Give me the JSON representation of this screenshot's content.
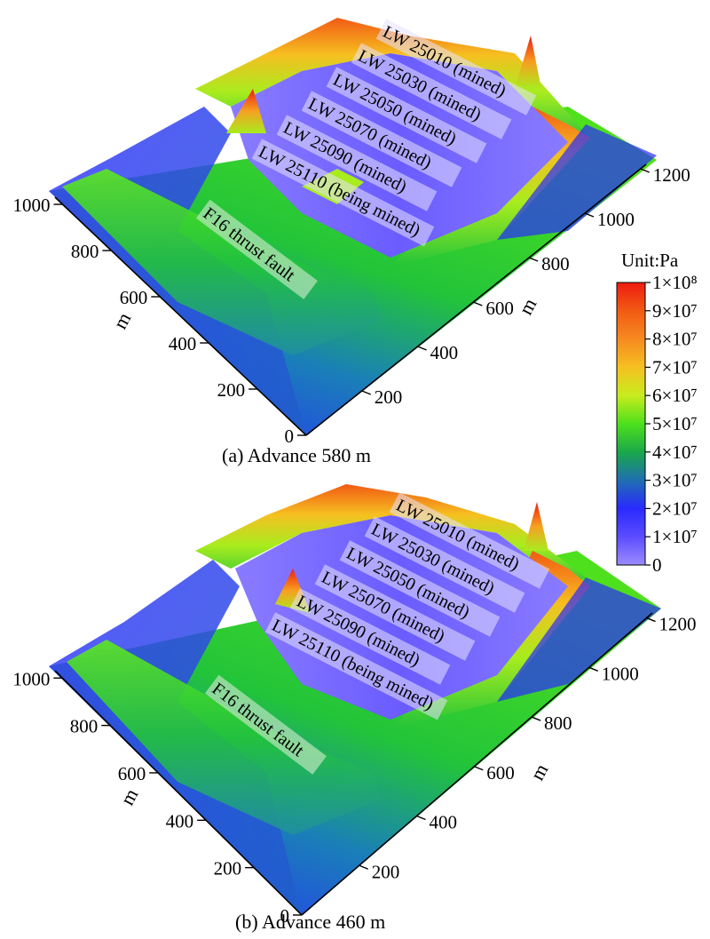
{
  "chart_data": [
    {
      "type": "heatmap",
      "subtype": "3d-surface",
      "caption": "(a) Advance 580 m",
      "axis_label_left": "m",
      "axis_label_right": "m",
      "left_ticks": [
        "0",
        "200",
        "400",
        "600",
        "800",
        "1000"
      ],
      "right_ticks": [
        "200",
        "400",
        "600",
        "800",
        "1000",
        "1200"
      ],
      "fault_label": "F16 thrust fault",
      "panels": [
        "LW 25010 (mined)",
        "LW 25030 (mined)",
        "LW 25050 (mined)",
        "LW 25070 (mined)",
        "LW 25090 (mined)",
        "LW 25110 (being mined)"
      ]
    },
    {
      "type": "heatmap",
      "subtype": "3d-surface",
      "caption": "(b) Advance 460 m",
      "axis_label_left": "m",
      "axis_label_right": "m",
      "left_ticks": [
        "0",
        "200",
        "400",
        "600",
        "800",
        "1000"
      ],
      "right_ticks": [
        "200",
        "400",
        "600",
        "800",
        "1000",
        "1200"
      ],
      "fault_label": "F16 thrust fault",
      "panels": [
        "LW 25010 (mined)",
        "LW 25030 (mined)",
        "LW 25050 (mined)",
        "LW 25070 (mined)",
        "LW 25090 (mined)",
        "LW 25110 (being mined)"
      ]
    }
  ],
  "colorbar": {
    "unit_label": "Unit:Pa",
    "ticks": [
      "1×10⁸",
      "9×10⁷",
      "8×10⁷",
      "7×10⁷",
      "6×10⁷",
      "5×10⁷",
      "4×10⁷",
      "3×10⁷",
      "2×10⁷",
      "1×10⁷",
      "0"
    ],
    "tick_values": [
      100000000,
      90000000,
      80000000,
      70000000,
      60000000,
      50000000,
      40000000,
      30000000,
      20000000,
      10000000,
      0
    ],
    "range": [
      0,
      100000000
    ],
    "colors": [
      "#9b8cff",
      "#6a5cff",
      "#2a2aff",
      "#1f5fc8",
      "#1a9a6a",
      "#22c43a",
      "#4ee01c",
      "#a8ec1e",
      "#f2e41c",
      "#f6a020",
      "#f25a14",
      "#ee1c10"
    ]
  }
}
